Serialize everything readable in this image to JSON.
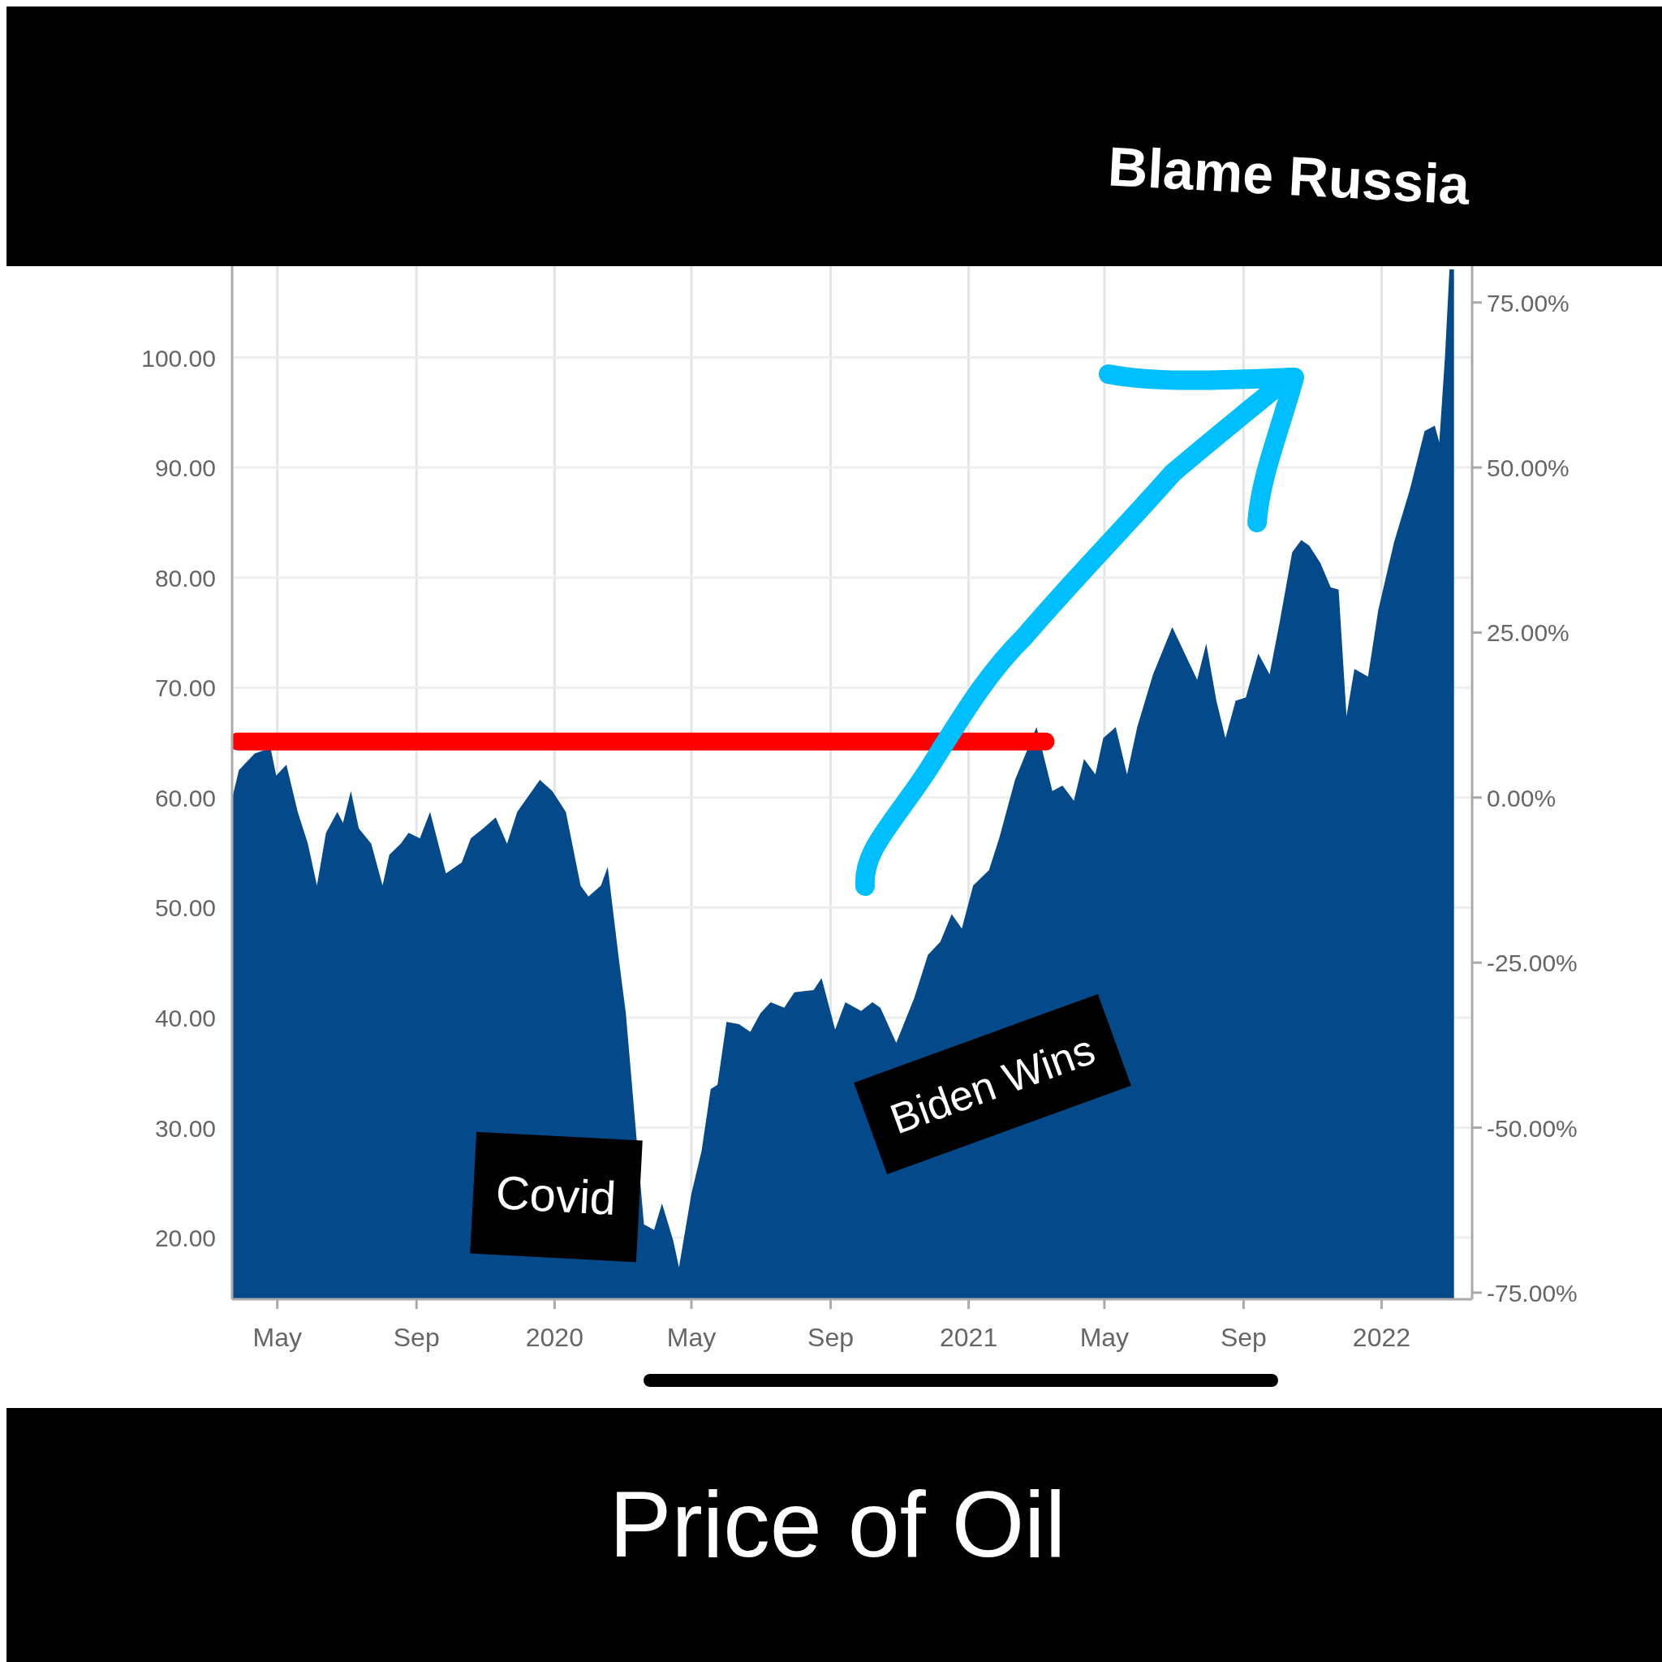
{
  "chart_data": {
    "type": "area",
    "title": "Price of Oil",
    "annotations": [
      "Blame Russia",
      "Covid",
      "Biden Wins"
    ],
    "xlim": [
      "2019-03-22",
      "2022-03-22"
    ],
    "xticks": [
      {
        "value": "2019-05-01",
        "label": "May"
      },
      {
        "value": "2019-09-01",
        "label": "Sep"
      },
      {
        "value": "2020-01-01",
        "label": "2020"
      },
      {
        "value": "2020-05-01",
        "label": "May"
      },
      {
        "value": "2020-09-01",
        "label": "Sep"
      },
      {
        "value": "2021-01-01",
        "label": "2021"
      },
      {
        "value": "2021-05-01",
        "label": "May"
      },
      {
        "value": "2021-09-01",
        "label": "Sep"
      },
      {
        "value": "2022-01-01",
        "label": "2022"
      }
    ],
    "ylim": [
      14.4,
      108.3
    ],
    "yticks": [
      {
        "value": 20,
        "label": "20.00"
      },
      {
        "value": 30,
        "label": "30.00"
      },
      {
        "value": 40,
        "label": "40.00"
      },
      {
        "value": 50,
        "label": "50.00"
      },
      {
        "value": 60,
        "label": "60.00"
      },
      {
        "value": 70,
        "label": "70.00"
      },
      {
        "value": 80,
        "label": "80.00"
      },
      {
        "value": 90,
        "label": "90.00"
      },
      {
        "value": 100,
        "label": "100.00"
      }
    ],
    "y2lim": [
      -76,
      80.5
    ],
    "y2ticks": [
      {
        "value": -75,
        "label": "-75.00%"
      },
      {
        "value": -50,
        "label": "-50.00%"
      },
      {
        "value": -25,
        "label": "-25.00%"
      },
      {
        "value": 0,
        "label": "0.00%"
      },
      {
        "value": 25,
        "label": "25.00%"
      },
      {
        "value": 50,
        "label": "50.00%"
      },
      {
        "value": 75,
        "label": "75.00%"
      }
    ],
    "grid": true,
    "series": [
      {
        "color": "#044a8b",
        "x": [
          "2019-03-22",
          "2019-03-28",
          "2019-04-11",
          "2019-04-25",
          "2019-04-30",
          "2019-05-09",
          "2019-05-19",
          "2019-05-28",
          "2019-06-05",
          "2019-06-13",
          "2019-06-23",
          "2019-06-28",
          "2019-07-05",
          "2019-07-12",
          "2019-07-23",
          "2019-08-02",
          "2019-08-08",
          "2019-08-18",
          "2019-08-25",
          "2019-09-04",
          "2019-09-13",
          "2019-09-27",
          "2019-10-11",
          "2019-10-19",
          "2019-10-30",
          "2019-11-10",
          "2019-11-20",
          "2019-11-29",
          "2019-12-19",
          "2019-12-30",
          "2020-01-11",
          "2020-01-24",
          "2020-01-31",
          "2020-02-11",
          "2020-02-17",
          "2020-02-27",
          "2020-03-04",
          "2020-03-13",
          "2020-03-20",
          "2020-03-29",
          "2020-04-05",
          "2020-04-15",
          "2020-04-20",
          "2020-05-01",
          "2020-05-10",
          "2020-05-18",
          "2020-05-24",
          "2020-06-01",
          "2020-06-12",
          "2020-06-22",
          "2020-07-01",
          "2020-07-10",
          "2020-07-22",
          "2020-07-31",
          "2020-08-17",
          "2020-08-24",
          "2020-09-05",
          "2020-09-14",
          "2020-09-28",
          "2020-10-08",
          "2020-10-15",
          "2020-10-29",
          "2020-11-14",
          "2020-11-26",
          "2020-12-07",
          "2020-12-17",
          "2020-12-26",
          "2021-01-05",
          "2021-01-19",
          "2021-01-28",
          "2021-02-11",
          "2021-03-02",
          "2021-03-16",
          "2021-03-25",
          "2021-04-04",
          "2021-04-13",
          "2021-04-23",
          "2021-04-30",
          "2021-05-11",
          "2021-05-21",
          "2021-05-30",
          "2021-06-13",
          "2021-06-30",
          "2021-07-11",
          "2021-07-22",
          "2021-07-30",
          "2021-08-08",
          "2021-08-16",
          "2021-08-25",
          "2021-09-03",
          "2021-09-14",
          "2021-09-24",
          "2021-10-03",
          "2021-10-14",
          "2021-10-22",
          "2021-10-29",
          "2021-11-08",
          "2021-11-17",
          "2021-11-24",
          "2021-12-01",
          "2021-12-08",
          "2021-12-20",
          "2021-12-29",
          "2022-01-12",
          "2022-01-26",
          "2022-02-08",
          "2022-02-17",
          "2022-02-21",
          "2022-02-26",
          "2022-03-02",
          "2022-03-06"
        ],
        "values": [
          59.9,
          62.5,
          64,
          64.5,
          62,
          63,
          58.7,
          55.8,
          52,
          56.8,
          58.7,
          57.7,
          60.6,
          57.2,
          55.8,
          52,
          54.8,
          55.8,
          56.8,
          56.3,
          58.7,
          53.1,
          54.1,
          56.3,
          57.2,
          58.2,
          55.8,
          58.7,
          61.6,
          60.6,
          58.7,
          52,
          51,
          52,
          53.7,
          45.2,
          40.4,
          null,
          21.2,
          20.7,
          23.1,
          19.7,
          17.3,
          24,
          27.9,
          33.5,
          33.9,
          39.6,
          39.4,
          38.7,
          40.4,
          41.4,
          40.9,
          42.3,
          42.5,
          43.6,
          38.9,
          41.4,
          40.6,
          41.4,
          40.9,
          37.7,
          41.8,
          45.7,
          46.9,
          49.4,
          48.1,
          52,
          53.4,
          56.3,
          61.6,
          66.4,
          60.6,
          61.1,
          59.7,
          63.5,
          62.1,
          65.4,
          66.4,
          62.1,
          66.4,
          71.2,
          75.5,
          73.1,
          70.7,
          74,
          68.8,
          65.4,
          68.8,
          69.1,
          73.1,
          71.2,
          76,
          82.3,
          83.4,
          82.9,
          81.3,
          79.1,
          78.9,
          67.4,
          71.7,
          71,
          77,
          83.2,
          88,
          93.3,
          93.8,
          92.3,
          100,
          108,
          108
        ]
      },
      {
        "type": "line",
        "color": "#ff0000",
        "x": [
          "2019-03-27",
          "2021-03-10"
        ],
        "values": [
          65.1,
          65.1
        ]
      }
    ]
  }
}
